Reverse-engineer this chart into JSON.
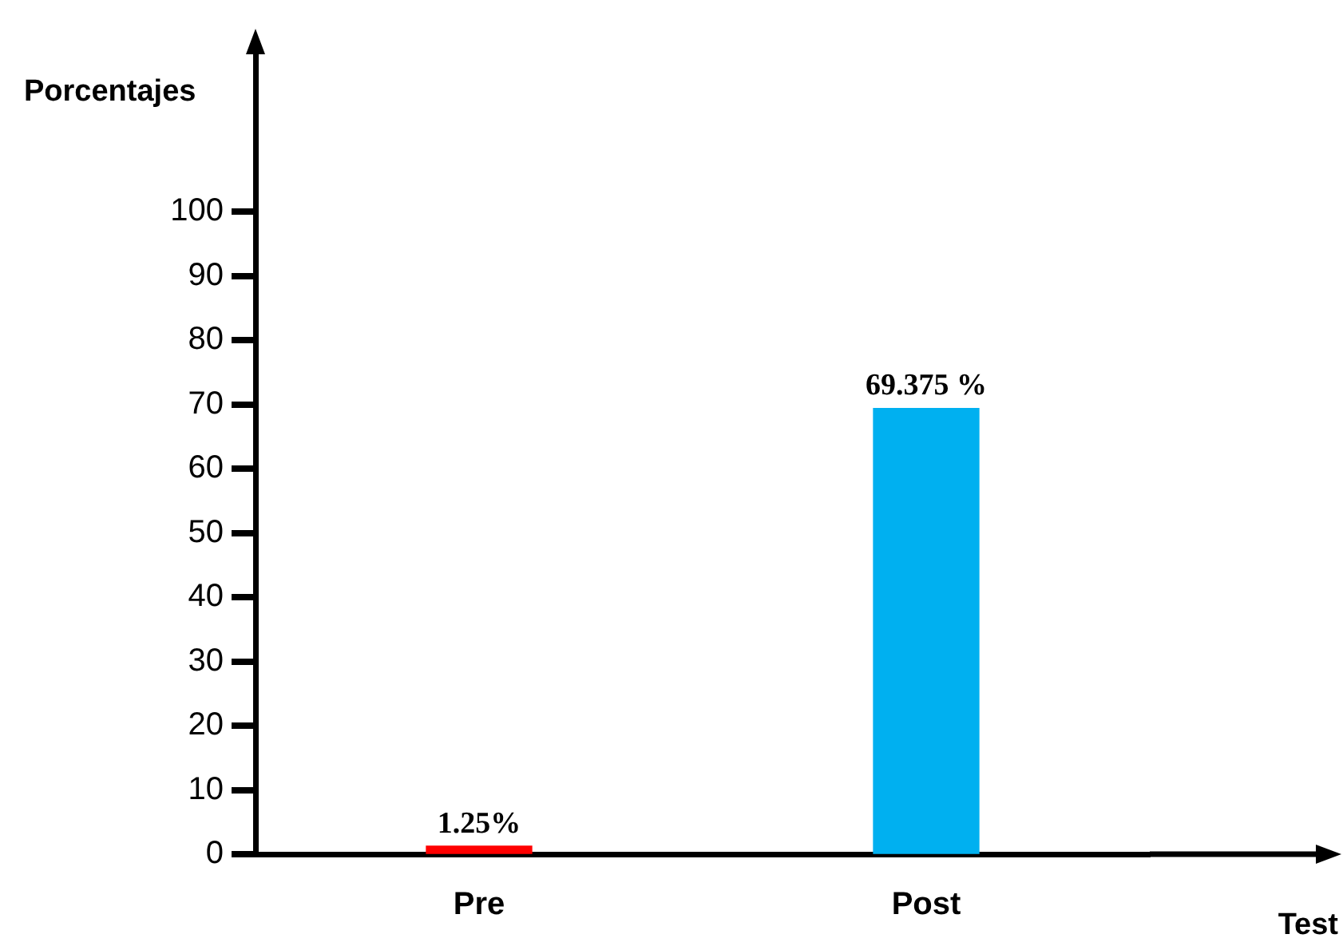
{
  "chart_data": {
    "type": "bar",
    "xlabel": "Test",
    "ylabel": "Porcentajes",
    "categories": [
      "Pre",
      "Post"
    ],
    "values": [
      1.25,
      69.375
    ],
    "colors": [
      "#ff0000",
      "#00b0f0"
    ],
    "value_labels": [
      "1.25%",
      "69.375 %"
    ],
    "ylim": [
      0,
      125
    ],
    "yticks": [
      0,
      10,
      20,
      30,
      40,
      50,
      60,
      70,
      80,
      90,
      100
    ],
    "grid": false,
    "legend": false
  }
}
